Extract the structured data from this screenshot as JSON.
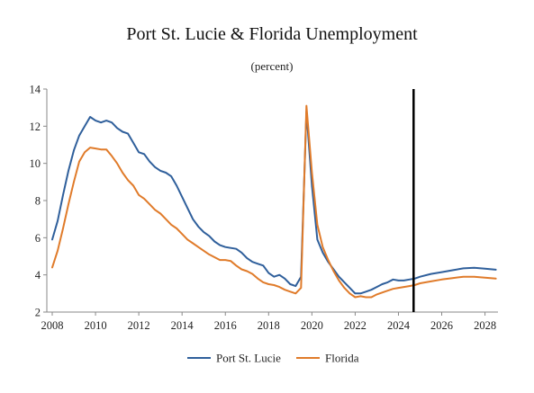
{
  "chart_data": {
    "type": "line",
    "title": "Port St. Lucie & Florida Unemployment",
    "subtitle": "(percent)",
    "xlabel": "",
    "ylabel": "",
    "xlim": [
      2007.75,
      2028.6
    ],
    "ylim": [
      2,
      14
    ],
    "x_ticks": [
      2008,
      2010,
      2012,
      2014,
      2016,
      2018,
      2020,
      2022,
      2024,
      2026,
      2028
    ],
    "y_ticks": [
      2,
      4,
      6,
      8,
      10,
      12,
      14
    ],
    "grid": false,
    "legend": "bottom",
    "vertical_marker_x": 2024.7,
    "series": [
      {
        "name": "Port St. Lucie",
        "color": "#2f5f9b",
        "x": [
          2008.0,
          2008.25,
          2008.5,
          2008.75,
          2009.0,
          2009.25,
          2009.5,
          2009.75,
          2010.0,
          2010.25,
          2010.5,
          2010.75,
          2011.0,
          2011.25,
          2011.5,
          2011.75,
          2012.0,
          2012.25,
          2012.5,
          2012.75,
          2013.0,
          2013.25,
          2013.5,
          2013.75,
          2014.0,
          2014.25,
          2014.5,
          2014.75,
          2015.0,
          2015.25,
          2015.5,
          2015.75,
          2016.0,
          2016.25,
          2016.5,
          2016.75,
          2017.0,
          2017.25,
          2017.5,
          2017.75,
          2018.0,
          2018.25,
          2018.5,
          2018.75,
          2019.0,
          2019.25,
          2019.5,
          2019.75,
          2020.0,
          2020.25,
          2020.5,
          2020.75,
          2021.0,
          2021.25,
          2021.5,
          2021.75,
          2022.0,
          2022.25,
          2022.5,
          2022.75,
          2023.0,
          2023.25,
          2023.5,
          2023.75,
          2024.0,
          2024.25,
          2024.5,
          2024.75,
          2025.0,
          2025.5,
          2026.0,
          2026.5,
          2027.0,
          2027.5,
          2028.0,
          2028.5
        ],
        "values": [
          5.9,
          6.9,
          8.3,
          9.6,
          10.7,
          11.5,
          12.0,
          12.5,
          12.3,
          12.2,
          12.3,
          12.2,
          11.9,
          11.7,
          11.6,
          11.1,
          10.6,
          10.5,
          10.1,
          9.8,
          9.6,
          9.5,
          9.3,
          8.8,
          8.2,
          7.6,
          7.0,
          6.6,
          6.3,
          6.1,
          5.8,
          5.6,
          5.5,
          5.45,
          5.4,
          5.2,
          4.9,
          4.7,
          4.6,
          4.5,
          4.1,
          3.9,
          4.0,
          3.8,
          3.5,
          3.4,
          3.9,
          12.8,
          8.8,
          5.9,
          5.2,
          4.7,
          4.3,
          3.9,
          3.6,
          3.3,
          3.0,
          3.0,
          3.1,
          3.2,
          3.35,
          3.5,
          3.6,
          3.75,
          3.7,
          3.7,
          3.75,
          3.8,
          3.9,
          4.05,
          4.15,
          4.25,
          4.35,
          4.38,
          4.33,
          4.28
        ]
      },
      {
        "name": "Florida",
        "color": "#e07b2a",
        "x": [
          2008.0,
          2008.25,
          2008.5,
          2008.75,
          2009.0,
          2009.25,
          2009.5,
          2009.75,
          2010.0,
          2010.25,
          2010.5,
          2010.75,
          2011.0,
          2011.25,
          2011.5,
          2011.75,
          2012.0,
          2012.25,
          2012.5,
          2012.75,
          2013.0,
          2013.25,
          2013.5,
          2013.75,
          2014.0,
          2014.25,
          2014.5,
          2014.75,
          2015.0,
          2015.25,
          2015.5,
          2015.75,
          2016.0,
          2016.25,
          2016.5,
          2016.75,
          2017.0,
          2017.25,
          2017.5,
          2017.75,
          2018.0,
          2018.25,
          2018.5,
          2018.75,
          2019.0,
          2019.25,
          2019.5,
          2019.75,
          2020.0,
          2020.25,
          2020.5,
          2020.75,
          2021.0,
          2021.25,
          2021.5,
          2021.75,
          2022.0,
          2022.25,
          2022.5,
          2022.75,
          2023.0,
          2023.25,
          2023.5,
          2023.75,
          2024.0,
          2024.25,
          2024.5,
          2024.75,
          2025.0,
          2025.5,
          2026.0,
          2026.5,
          2027.0,
          2027.5,
          2028.0,
          2028.5
        ],
        "values": [
          4.4,
          5.3,
          6.5,
          7.8,
          9.0,
          10.1,
          10.6,
          10.85,
          10.8,
          10.75,
          10.75,
          10.4,
          10.0,
          9.5,
          9.1,
          8.8,
          8.3,
          8.1,
          7.8,
          7.5,
          7.3,
          7.0,
          6.7,
          6.5,
          6.2,
          5.9,
          5.7,
          5.5,
          5.3,
          5.1,
          4.95,
          4.8,
          4.8,
          4.75,
          4.5,
          4.3,
          4.2,
          4.05,
          3.8,
          3.6,
          3.5,
          3.45,
          3.35,
          3.2,
          3.1,
          3.0,
          3.3,
          13.1,
          9.5,
          6.7,
          5.5,
          4.8,
          4.2,
          3.7,
          3.3,
          3.0,
          2.8,
          2.85,
          2.8,
          2.8,
          2.95,
          3.05,
          3.15,
          3.25,
          3.3,
          3.35,
          3.4,
          3.45,
          3.55,
          3.65,
          3.75,
          3.83,
          3.9,
          3.9,
          3.85,
          3.8
        ]
      }
    ]
  }
}
